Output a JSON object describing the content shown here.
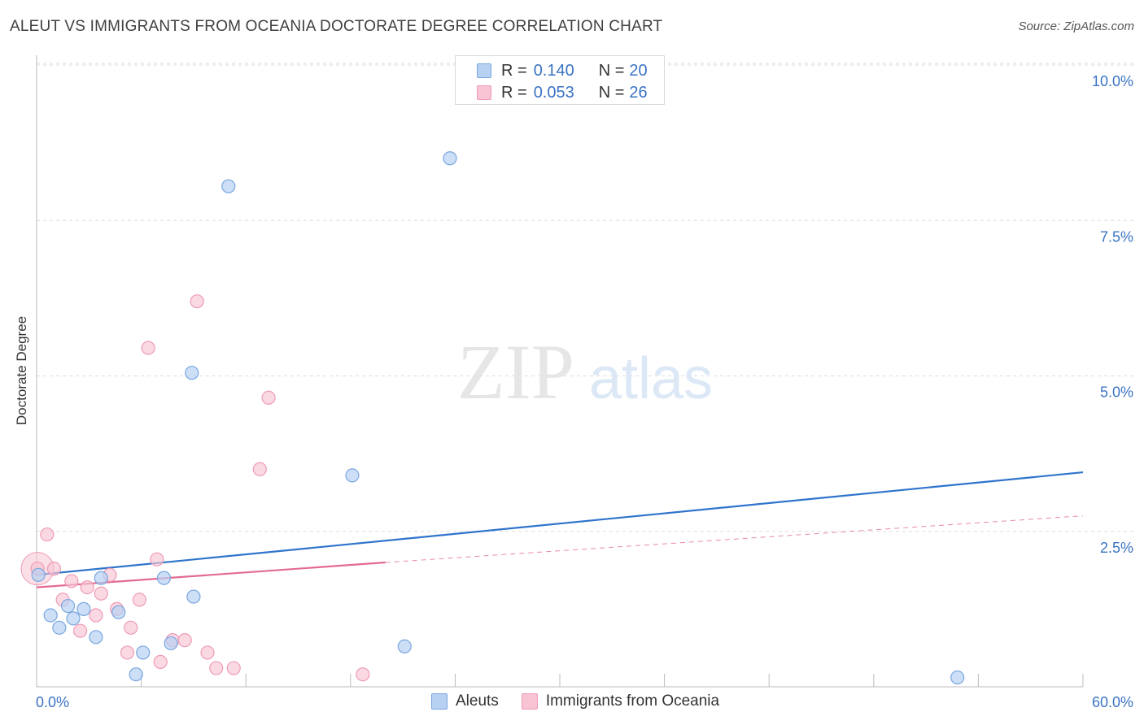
{
  "title": "ALEUT VS IMMIGRANTS FROM OCEANIA DOCTORATE DEGREE CORRELATION CHART",
  "source": "Source: ZipAtlas.com",
  "watermark": {
    "zip": "ZIP",
    "atlas": "atlas"
  },
  "legend_top": [
    {
      "r_label": "R =",
      "r_value": "0.140",
      "n_label": "N =",
      "n_value": "20"
    },
    {
      "r_label": "R =",
      "r_value": "0.053",
      "n_label": "N =",
      "n_value": "26"
    }
  ],
  "colors": {
    "blue_fill": "#b7d1f2",
    "blue_stroke": "#7aa6e0",
    "blue_line": "#2f74cc",
    "pink_fill": "#f8c4d4",
    "pink_stroke": "#ee9bb5",
    "pink_line": "#e36b93",
    "tick_label": "#3b73c4",
    "grid": "#dddddd",
    "axis": "#bbbbbb"
  },
  "chart_data": {
    "type": "scatter",
    "title": "ALEUT VS IMMIGRANTS FROM OCEANIA DOCTORATE DEGREE CORRELATION CHART",
    "xlabel": "",
    "ylabel": "Doctorate Degree",
    "xlim": [
      0,
      60
    ],
    "ylim": [
      0,
      10.5
    ],
    "x_tick_labels": [
      "0.0%",
      "60.0%"
    ],
    "y_ticks": [
      2.5,
      5.0,
      7.5,
      10.0
    ],
    "y_tick_labels": [
      "2.5%",
      "5.0%",
      "7.5%",
      "10.0%"
    ],
    "legend": [
      "Aleuts",
      "Immigrants from Oceania"
    ],
    "series": [
      {
        "name": "Aleuts",
        "r": 0.14,
        "n": 20,
        "points": [
          [
            0.1,
            1.8
          ],
          [
            0.8,
            1.15
          ],
          [
            1.3,
            0.95
          ],
          [
            1.8,
            1.3
          ],
          [
            2.1,
            1.1
          ],
          [
            2.7,
            1.25
          ],
          [
            3.4,
            0.8
          ],
          [
            3.7,
            1.75
          ],
          [
            4.7,
            1.2
          ],
          [
            5.7,
            0.2
          ],
          [
            6.1,
            0.55
          ],
          [
            7.3,
            1.75
          ],
          [
            7.7,
            0.7
          ],
          [
            9.0,
            1.45
          ],
          [
            8.9,
            5.05
          ],
          [
            11.0,
            8.05
          ],
          [
            18.1,
            3.4
          ],
          [
            21.1,
            0.65
          ],
          [
            23.7,
            8.5
          ],
          [
            52.8,
            0.15
          ]
        ],
        "trend": [
          [
            0,
            1.8
          ],
          [
            60,
            3.45
          ]
        ]
      },
      {
        "name": "Immigrants from Oceania",
        "r": 0.053,
        "n": 26,
        "points": [
          [
            0.05,
            1.9
          ],
          [
            0.6,
            2.45
          ],
          [
            1.0,
            1.9
          ],
          [
            1.5,
            1.4
          ],
          [
            2.0,
            1.7
          ],
          [
            2.5,
            0.9
          ],
          [
            2.9,
            1.6
          ],
          [
            3.4,
            1.15
          ],
          [
            3.7,
            1.5
          ],
          [
            4.2,
            1.8
          ],
          [
            4.6,
            1.25
          ],
          [
            5.2,
            0.55
          ],
          [
            5.4,
            0.95
          ],
          [
            5.9,
            1.4
          ],
          [
            6.4,
            5.45
          ],
          [
            6.9,
            2.05
          ],
          [
            7.1,
            0.4
          ],
          [
            7.8,
            0.75
          ],
          [
            8.5,
            0.75
          ],
          [
            9.2,
            6.2
          ],
          [
            9.8,
            0.55
          ],
          [
            10.3,
            0.3
          ],
          [
            11.3,
            0.3
          ],
          [
            12.8,
            3.5
          ],
          [
            13.3,
            4.65
          ],
          [
            18.7,
            0.2
          ]
        ],
        "trend_solid": [
          [
            0,
            1.6
          ],
          [
            20,
            2.0
          ]
        ],
        "trend_dashed": [
          [
            20,
            2.0
          ],
          [
            60,
            2.75
          ]
        ]
      }
    ]
  }
}
